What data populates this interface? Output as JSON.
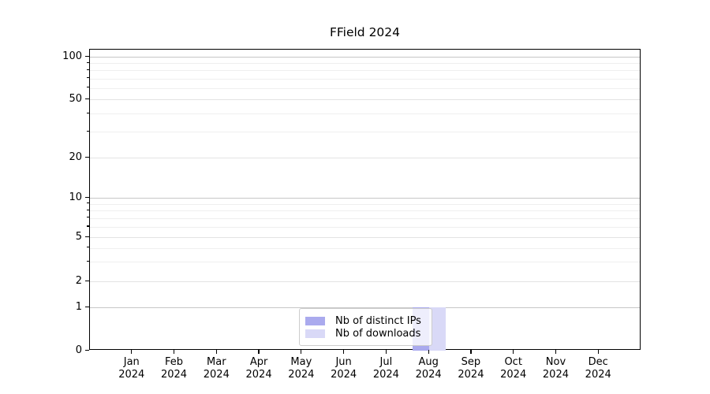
{
  "title": "FField 2024",
  "colors": {
    "series_distinct_ips": "#aaaaee",
    "series_downloads": "#d9d9f7",
    "grid_major": "#c6c6c6",
    "grid_mid": "#e3e3e3",
    "grid_minor": "#efefef",
    "spine": "#000000",
    "legend_border": "#cccccc",
    "background": "#ffffff"
  },
  "chart_data": {
    "type": "bar",
    "title": "FField 2024",
    "xlabel": "",
    "ylabel": "",
    "categories": [
      "Jan 2024",
      "Feb 2024",
      "Mar 2024",
      "Apr 2024",
      "May 2024",
      "Jun 2024",
      "Jul 2024",
      "Aug 2024",
      "Sep 2024",
      "Oct 2024",
      "Nov 2024",
      "Dec 2024"
    ],
    "series": [
      {
        "name": "Nb of distinct IPs",
        "color": "#aaaaee",
        "values": [
          0,
          0,
          0,
          0,
          0,
          0,
          0,
          1,
          0,
          0,
          0,
          0
        ]
      },
      {
        "name": "Nb of downloads",
        "color": "#d9d9f7",
        "values": [
          0,
          0,
          0,
          0,
          0,
          0,
          0,
          1,
          0,
          0,
          0,
          0
        ]
      }
    ],
    "yscale": "symlog (linear 0-1, log above)",
    "yticks": [
      0,
      1,
      2,
      5,
      10,
      20,
      50,
      100
    ],
    "minor_yticks": [
      3,
      4,
      6,
      7,
      8,
      9,
      30,
      40,
      60,
      70,
      80,
      90
    ],
    "ylim": [
      0,
      112
    ],
    "grid": true,
    "legend_position": "lower center"
  },
  "legend": {
    "items": [
      {
        "label": "Nb of distinct IPs"
      },
      {
        "label": "Nb of downloads"
      }
    ]
  }
}
